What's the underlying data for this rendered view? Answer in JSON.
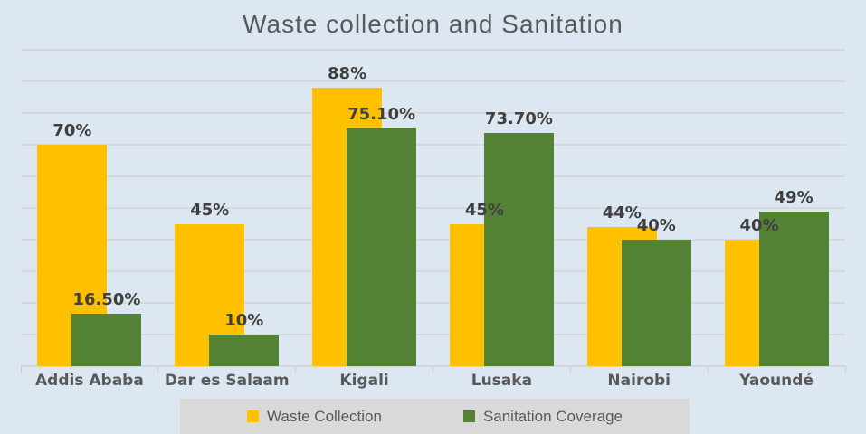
{
  "chart_data": {
    "type": "bar",
    "title": "Waste collection and Sanitation",
    "categories": [
      "Addis Ababa",
      "Dar es Salaam",
      "Kigali",
      "Lusaka",
      "Nairobi",
      "Yaoundé"
    ],
    "series": [
      {
        "name": "Waste Collection",
        "color": "#FFC000",
        "values": [
          70,
          45,
          88,
          45,
          44,
          40
        ],
        "data_labels": [
          "70%",
          "45%",
          "88%",
          "45%",
          "44%",
          "40%"
        ]
      },
      {
        "name": "Sanitation Coverage",
        "color": "#548235",
        "values": [
          16.5,
          10,
          75.1,
          73.7,
          40,
          49
        ],
        "data_labels": [
          "16.50%",
          "10%",
          "75.10%",
          "73.70%",
          "40%",
          "49%"
        ]
      }
    ],
    "xlabel": "",
    "ylabel": "",
    "ylim": [
      0,
      100
    ],
    "gridline_step": 10,
    "grid": "horizontal",
    "y_axis_labels_visible": false,
    "legend_position": "bottom"
  },
  "legend": {
    "items": [
      {
        "label": "Waste Collection",
        "color": "#FFC000"
      },
      {
        "label": "Sanitation Coverage",
        "color": "#548235"
      }
    ]
  },
  "colors": {
    "background": "#dde7f2",
    "gridline": "#d6d9dc",
    "legend_background": "#d9d9d9",
    "title_text": "#595959",
    "axis_text": "#595959",
    "data_label_text": "#404040",
    "waste_collection": "#FFC000",
    "sanitation_coverage": "#548235"
  }
}
